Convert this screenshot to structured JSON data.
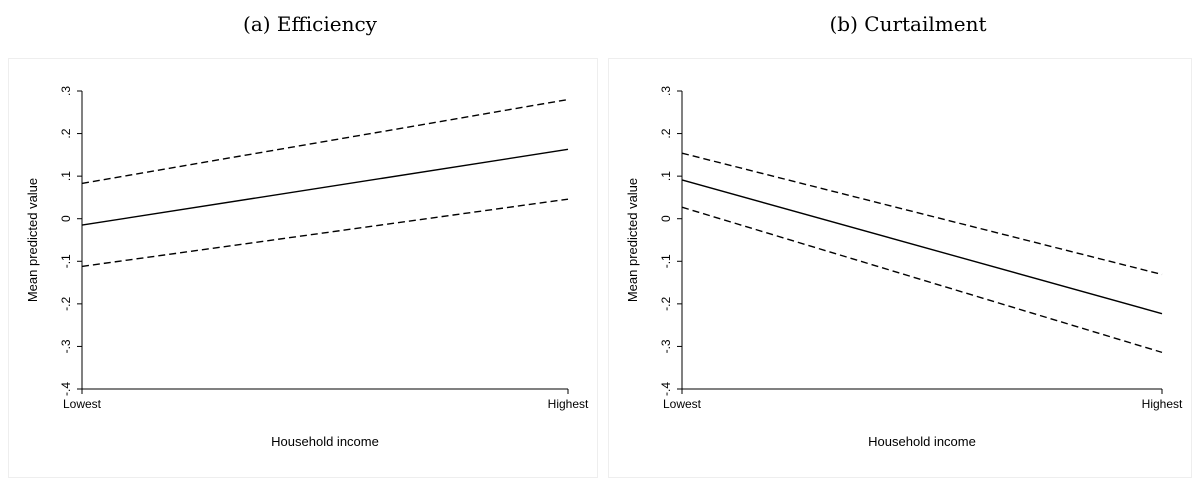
{
  "chart_data": [
    {
      "type": "line",
      "title": "(a) Efficiency",
      "xlabel": "Household income",
      "ylabel": "Mean predicted value",
      "categories": [
        "Lowest",
        "Highest"
      ],
      "ylim": [
        -0.4,
        0.3
      ],
      "yticks": [
        -0.4,
        -0.3,
        -0.2,
        -0.1,
        0,
        0.1,
        0.2,
        0.3
      ],
      "ytick_labels": [
        "-.4",
        "-.3",
        "-.2",
        "-.1",
        "0",
        ".1",
        ".2",
        ".3"
      ],
      "grid": false,
      "series": [
        {
          "role": "estimate",
          "style": "solid",
          "values": [
            -0.015,
            0.163
          ]
        },
        {
          "role": "upper-ci",
          "style": "dashed",
          "values": [
            0.083,
            0.28
          ]
        },
        {
          "role": "lower-ci",
          "style": "dashed",
          "values": [
            -0.112,
            0.046
          ]
        }
      ]
    },
    {
      "type": "line",
      "title": "(b) Curtailment",
      "xlabel": "Household income",
      "ylabel": "Mean predicted value",
      "categories": [
        "Lowest",
        "Highest"
      ],
      "ylim": [
        -0.4,
        0.3
      ],
      "yticks": [
        -0.4,
        -0.3,
        -0.2,
        -0.1,
        0,
        0.1,
        0.2,
        0.3
      ],
      "ytick_labels": [
        "-.4",
        "-.3",
        "-.2",
        "-.1",
        "0",
        ".1",
        ".2",
        ".3"
      ],
      "grid": false,
      "series": [
        {
          "role": "estimate",
          "style": "solid",
          "values": [
            0.091,
            -0.223
          ]
        },
        {
          "role": "upper-ci",
          "style": "dashed",
          "values": [
            0.154,
            -0.131
          ]
        },
        {
          "role": "lower-ci",
          "style": "dashed",
          "values": [
            0.027,
            -0.314
          ]
        }
      ]
    }
  ]
}
